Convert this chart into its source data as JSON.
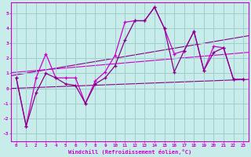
{
  "xlabel": "Windchill (Refroidissement éolien,°C)",
  "background_color": "#c8ecea",
  "grid_color": "#9ecfcc",
  "line_color_bright": "#cc00cc",
  "line_color_dark": "#880088",
  "xlim": [
    -0.5,
    23.5
  ],
  "ylim": [
    -3.5,
    5.7
  ],
  "xticks": [
    0,
    1,
    2,
    3,
    4,
    5,
    6,
    7,
    8,
    9,
    10,
    11,
    12,
    13,
    14,
    15,
    16,
    17,
    18,
    19,
    20,
    21,
    22,
    23
  ],
  "yticks": [
    -3,
    -2,
    -1,
    0,
    1,
    2,
    3,
    4,
    5
  ],
  "series1_x": [
    0,
    1,
    2,
    3,
    4,
    5,
    6,
    7,
    8,
    9,
    10,
    11,
    12,
    13,
    14,
    15,
    16,
    17,
    18,
    19,
    20,
    21,
    22,
    23
  ],
  "series1_y": [
    0.7,
    -2.5,
    0.7,
    2.3,
    0.7,
    0.7,
    0.7,
    -1.0,
    0.5,
    1.1,
    2.2,
    4.4,
    4.5,
    4.5,
    5.4,
    4.0,
    2.3,
    2.5,
    3.8,
    1.2,
    2.8,
    2.7,
    0.6,
    0.6
  ],
  "series2_x": [
    0,
    1,
    2,
    3,
    4,
    5,
    6,
    7,
    8,
    9,
    10,
    11,
    12,
    13,
    14,
    15,
    16,
    17,
    18,
    19,
    20,
    21,
    22,
    23
  ],
  "series2_y": [
    0.7,
    -2.5,
    -0.3,
    1.0,
    0.7,
    0.3,
    0.2,
    -1.0,
    0.3,
    0.7,
    1.5,
    3.2,
    4.5,
    4.5,
    5.4,
    4.0,
    1.1,
    2.5,
    3.8,
    1.2,
    2.4,
    2.7,
    0.6,
    0.6
  ],
  "trend_lower_start": 0.0,
  "trend_lower_end": 0.6,
  "trend_upper_start": 0.85,
  "trend_upper_end": 3.5,
  "trend_mid_start": 1.05,
  "trend_mid_end": 2.4
}
